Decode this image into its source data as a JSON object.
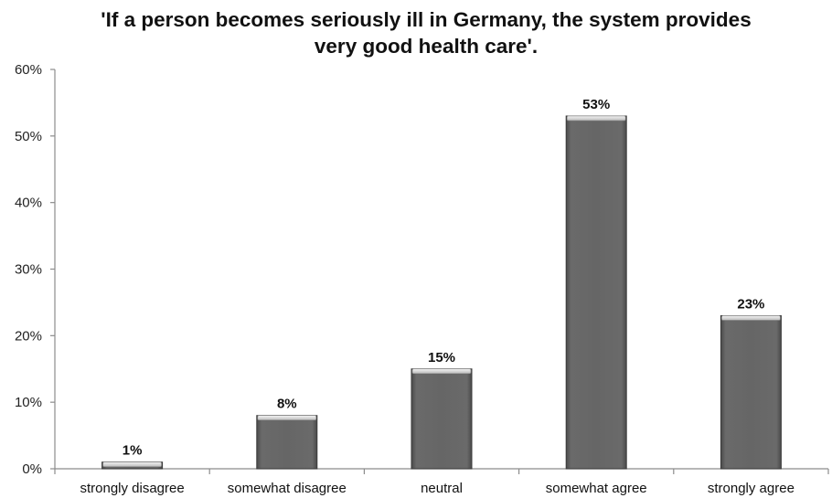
{
  "chart_data": {
    "type": "bar",
    "title_lines": [
      "'If a person becomes seriously ill in Germany, the system provides",
      "very good health care'."
    ],
    "categories": [
      "strongly disagree",
      "somewhat disagree",
      "neutral",
      "somewhat agree",
      "strongly agree"
    ],
    "values": [
      1,
      8,
      15,
      53,
      23
    ],
    "value_labels": [
      "1%",
      "8%",
      "15%",
      "53%",
      "23%"
    ],
    "yticks": [
      0,
      10,
      20,
      30,
      40,
      50,
      60
    ],
    "ytick_labels": [
      "0%",
      "10%",
      "20%",
      "30%",
      "40%",
      "50%",
      "60%"
    ],
    "ylim": [
      0,
      60
    ],
    "xlabel": "",
    "ylabel": "",
    "grid": false,
    "legend": "none",
    "colors": {
      "bar_fill": "#666666",
      "bar_edge": "#3a3a3a",
      "bar_top": "#d9d9d9",
      "axis": "#8c8c8c"
    }
  }
}
